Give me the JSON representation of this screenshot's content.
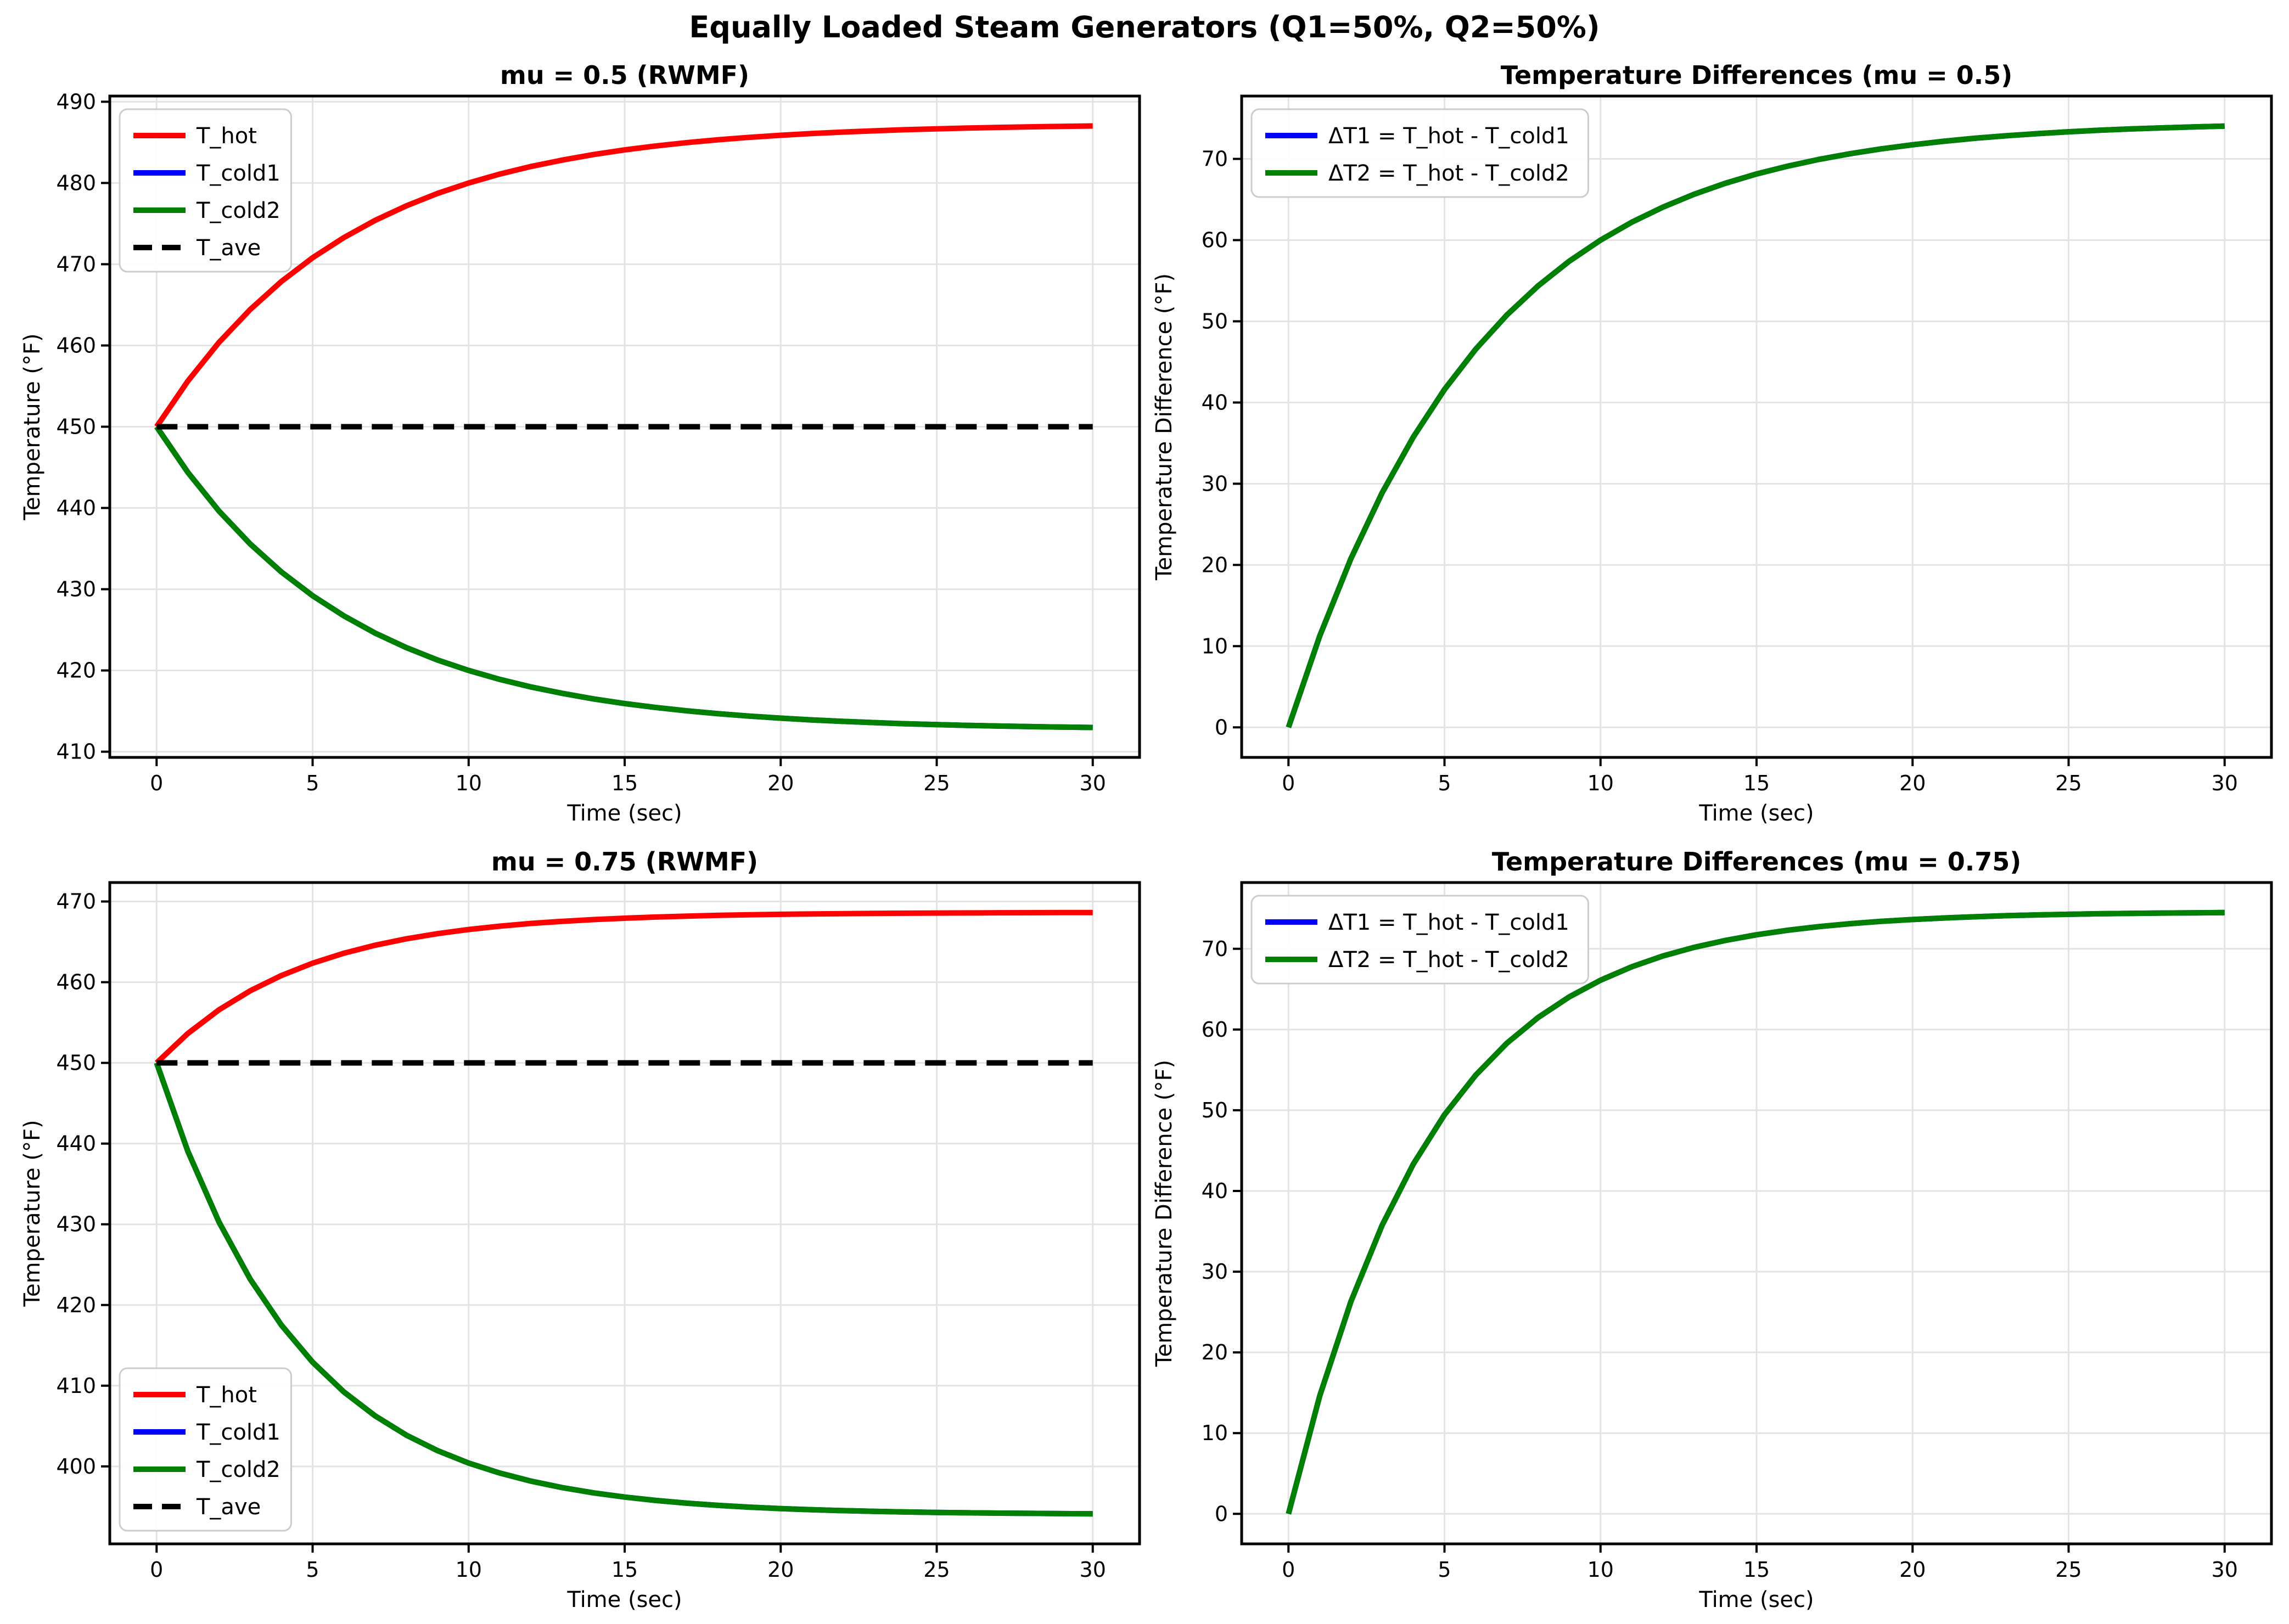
{
  "figure": {
    "suptitle": "Equally Loaded Steam Generators (Q1=50%, Q2=50%)",
    "background": "#ffffff",
    "grid_color": "#e3e3e3",
    "spine_color": "#000000"
  },
  "chart_data": [
    {
      "id": "temps-mu-0.5",
      "type": "line",
      "title": "mu = 0.5 (RWMF)",
      "xlabel": "Time (sec)",
      "ylabel": "Temperature (°F)",
      "xlim": [
        -1.5,
        31.5
      ],
      "ylim": [
        409.3,
        490.7
      ],
      "xticks": [
        0,
        5,
        10,
        15,
        20,
        25,
        30
      ],
      "yticks": [
        410,
        420,
        430,
        440,
        450,
        460,
        470,
        480,
        490
      ],
      "grid": true,
      "legend": {
        "loc": "upper-left",
        "entries": [
          {
            "label": "T_hot",
            "color": "#ff0000",
            "dash": false
          },
          {
            "label": "T_cold1",
            "color": "#0000ff",
            "dash": false
          },
          {
            "label": "T_cold2",
            "color": "#008000",
            "dash": false
          },
          {
            "label": "T_ave",
            "color": "#000000",
            "dash": true
          }
        ]
      },
      "x": [
        0,
        1,
        2,
        3,
        4,
        5,
        6,
        7,
        8,
        9,
        10,
        11,
        12,
        13,
        14,
        15,
        16,
        17,
        18,
        19,
        20,
        21,
        22,
        23,
        24,
        25,
        26,
        27,
        28,
        29,
        30
      ],
      "series": [
        {
          "name": "T_hot",
          "color": "#ff0000",
          "dash": false,
          "values": [
            450,
            455.61,
            460.38,
            464.43,
            467.88,
            470.8,
            473.28,
            475.39,
            477.18,
            478.71,
            480.0,
            481.1,
            482.03,
            482.82,
            483.5,
            484.07,
            484.56,
            484.97,
            485.32,
            485.62,
            485.87,
            486.09,
            486.27,
            486.42,
            486.56,
            486.67,
            486.76,
            486.84,
            486.91,
            486.97,
            487.02
          ]
        },
        {
          "name": "T_cold1",
          "color": "#0000ff",
          "dash": false,
          "values": [
            450,
            444.39,
            439.62,
            435.57,
            432.12,
            429.2,
            426.72,
            424.61,
            422.82,
            421.29,
            420.0,
            418.9,
            417.97,
            417.18,
            416.5,
            415.93,
            415.44,
            415.03,
            414.68,
            414.38,
            414.13,
            413.91,
            413.73,
            413.58,
            413.44,
            413.33,
            413.24,
            413.16,
            413.09,
            413.03,
            412.98
          ]
        },
        {
          "name": "T_cold2",
          "color": "#008000",
          "dash": false,
          "values": [
            450,
            444.39,
            439.62,
            435.57,
            432.12,
            429.2,
            426.72,
            424.61,
            422.82,
            421.29,
            420.0,
            418.9,
            417.97,
            417.18,
            416.5,
            415.93,
            415.44,
            415.03,
            414.68,
            414.38,
            414.13,
            413.91,
            413.73,
            413.58,
            413.44,
            413.33,
            413.24,
            413.16,
            413.09,
            413.03,
            412.98
          ]
        },
        {
          "name": "T_ave",
          "color": "#000000",
          "dash": true,
          "values": [
            450,
            450,
            450,
            450,
            450,
            450,
            450,
            450,
            450,
            450,
            450,
            450,
            450,
            450,
            450,
            450,
            450,
            450,
            450,
            450,
            450,
            450,
            450,
            450,
            450,
            450,
            450,
            450,
            450,
            450,
            450
          ]
        }
      ]
    },
    {
      "id": "deltas-mu-0.5",
      "type": "line",
      "title": "Temperature Differences (mu = 0.5)",
      "xlabel": "Time (sec)",
      "ylabel": "Temperature Difference (°F)",
      "xlim": [
        -1.5,
        31.5
      ],
      "ylim": [
        -3.7,
        77.74
      ],
      "xticks": [
        0,
        5,
        10,
        15,
        20,
        25,
        30
      ],
      "yticks": [
        0,
        10,
        20,
        30,
        40,
        50,
        60,
        70
      ],
      "grid": true,
      "legend": {
        "loc": "upper-left",
        "entries": [
          {
            "label": "ΔT1 = T_hot - T_cold1",
            "color": "#0000ff",
            "dash": false
          },
          {
            "label": "ΔT2 = T_hot - T_cold2",
            "color": "#008000",
            "dash": false
          }
        ]
      },
      "x": [
        0,
        1,
        2,
        3,
        4,
        5,
        6,
        7,
        8,
        9,
        10,
        11,
        12,
        13,
        14,
        15,
        16,
        17,
        18,
        19,
        20,
        21,
        22,
        23,
        24,
        25,
        26,
        27,
        28,
        29,
        30
      ],
      "series": [
        {
          "name": "dT1",
          "color": "#0000ff",
          "dash": false,
          "values": [
            0,
            11.23,
            20.77,
            28.87,
            35.75,
            41.6,
            46.57,
            50.78,
            54.37,
            57.41,
            60.0,
            62.2,
            64.06,
            65.65,
            67.0,
            68.14,
            69.11,
            69.94,
            70.64,
            71.24,
            71.74,
            72.17,
            72.54,
            72.85,
            73.11,
            73.34,
            73.53,
            73.69,
            73.82,
            73.94,
            74.04
          ]
        },
        {
          "name": "dT2",
          "color": "#008000",
          "dash": false,
          "values": [
            0,
            11.23,
            20.77,
            28.87,
            35.75,
            41.6,
            46.57,
            50.78,
            54.37,
            57.41,
            60.0,
            62.2,
            64.06,
            65.65,
            67.0,
            68.14,
            69.11,
            69.94,
            70.64,
            71.24,
            71.74,
            72.17,
            72.54,
            72.85,
            73.11,
            73.34,
            73.53,
            73.69,
            73.82,
            73.94,
            74.04
          ]
        }
      ]
    },
    {
      "id": "temps-mu-0.75",
      "type": "line",
      "title": "mu = 0.75 (RWMF)",
      "xlabel": "Time (sec)",
      "ylabel": "Temperature (°F)",
      "xlim": [
        -1.5,
        31.5
      ],
      "ylim": [
        390.4,
        472.35
      ],
      "xticks": [
        0,
        5,
        10,
        15,
        20,
        25,
        30
      ],
      "yticks": [
        400,
        410,
        420,
        430,
        440,
        450,
        460,
        470
      ],
      "grid": true,
      "legend": {
        "loc": "lower-left",
        "entries": [
          {
            "label": "T_hot",
            "color": "#ff0000",
            "dash": false
          },
          {
            "label": "T_cold1",
            "color": "#0000ff",
            "dash": false
          },
          {
            "label": "T_cold2",
            "color": "#008000",
            "dash": false
          },
          {
            "label": "T_ave",
            "color": "#000000",
            "dash": true
          }
        ]
      },
      "x": [
        0,
        1,
        2,
        3,
        4,
        5,
        6,
        7,
        8,
        9,
        10,
        11,
        12,
        13,
        14,
        15,
        16,
        17,
        18,
        19,
        20,
        21,
        22,
        23,
        24,
        25,
        26,
        27,
        28,
        29,
        30
      ],
      "series": [
        {
          "name": "T_hot",
          "color": "#ff0000",
          "dash": false,
          "values": [
            450,
            453.64,
            456.58,
            458.93,
            460.83,
            462.36,
            463.59,
            464.58,
            465.37,
            466.01,
            466.53,
            466.94,
            467.28,
            467.54,
            467.76,
            467.93,
            468.07,
            468.19,
            468.28,
            468.35,
            468.41,
            468.46,
            468.49,
            468.52,
            468.55,
            468.57,
            468.58,
            468.6,
            468.61,
            468.62,
            468.62
          ]
        },
        {
          "name": "T_cold1",
          "color": "#0000ff",
          "dash": false,
          "values": [
            450,
            439.07,
            430.27,
            423.2,
            417.5,
            412.92,
            409.23,
            406.27,
            403.88,
            401.96,
            400.41,
            399.17,
            398.17,
            397.37,
            396.72,
            396.2,
            395.78,
            395.44,
            395.17,
            394.95,
            394.77,
            394.63,
            394.52,
            394.43,
            394.35,
            394.29,
            394.25,
            394.21,
            394.18,
            394.15,
            394.13
          ]
        },
        {
          "name": "T_cold2",
          "color": "#008000",
          "dash": false,
          "values": [
            450,
            439.07,
            430.27,
            423.2,
            417.5,
            412.92,
            409.23,
            406.27,
            403.88,
            401.96,
            400.41,
            399.17,
            398.17,
            397.37,
            396.72,
            396.2,
            395.78,
            395.44,
            395.17,
            394.95,
            394.77,
            394.63,
            394.52,
            394.43,
            394.35,
            394.29,
            394.25,
            394.21,
            394.18,
            394.15,
            394.13
          ]
        },
        {
          "name": "T_ave",
          "color": "#000000",
          "dash": true,
          "values": [
            450,
            450,
            450,
            450,
            450,
            450,
            450,
            450,
            450,
            450,
            450,
            450,
            450,
            450,
            450,
            450,
            450,
            450,
            450,
            450,
            450,
            450,
            450,
            450,
            450,
            450,
            450,
            450,
            450,
            450,
            450
          ]
        }
      ]
    },
    {
      "id": "deltas-mu-0.75",
      "type": "line",
      "title": "Temperature Differences (mu = 0.75)",
      "xlabel": "Time (sec)",
      "ylabel": "Temperature Difference (°F)",
      "xlim": [
        -1.5,
        31.5
      ],
      "ylim": [
        -3.72,
        78.21
      ],
      "xticks": [
        0,
        5,
        10,
        15,
        20,
        25,
        30
      ],
      "yticks": [
        0,
        10,
        20,
        30,
        40,
        50,
        60,
        70
      ],
      "grid": true,
      "legend": {
        "loc": "upper-left",
        "entries": [
          {
            "label": "ΔT1 = T_hot - T_cold1",
            "color": "#0000ff",
            "dash": false
          },
          {
            "label": "ΔT2 = T_hot - T_cold2",
            "color": "#008000",
            "dash": false
          }
        ]
      },
      "x": [
        0,
        1,
        2,
        3,
        4,
        5,
        6,
        7,
        8,
        9,
        10,
        11,
        12,
        13,
        14,
        15,
        16,
        17,
        18,
        19,
        20,
        21,
        22,
        23,
        24,
        25,
        26,
        27,
        28,
        29,
        30
      ],
      "series": [
        {
          "name": "dT1",
          "color": "#0000ff",
          "dash": false,
          "values": [
            0,
            14.58,
            26.3,
            35.74,
            43.33,
            49.44,
            54.35,
            58.31,
            61.49,
            64.05,
            66.11,
            67.77,
            69.11,
            70.18,
            71.04,
            71.74,
            72.3,
            72.75,
            73.11,
            73.4,
            73.63,
            73.82,
            73.97,
            74.1,
            74.2,
            74.27,
            74.34,
            74.39,
            74.43,
            74.46,
            74.49
          ]
        },
        {
          "name": "dT2",
          "color": "#008000",
          "dash": false,
          "values": [
            0,
            14.58,
            26.3,
            35.74,
            43.33,
            49.44,
            54.35,
            58.31,
            61.49,
            64.05,
            66.11,
            67.77,
            69.11,
            70.18,
            71.04,
            71.74,
            72.3,
            72.75,
            73.11,
            73.4,
            73.63,
            73.82,
            73.97,
            74.1,
            74.2,
            74.27,
            74.34,
            74.39,
            74.43,
            74.46,
            74.49
          ]
        }
      ]
    }
  ]
}
